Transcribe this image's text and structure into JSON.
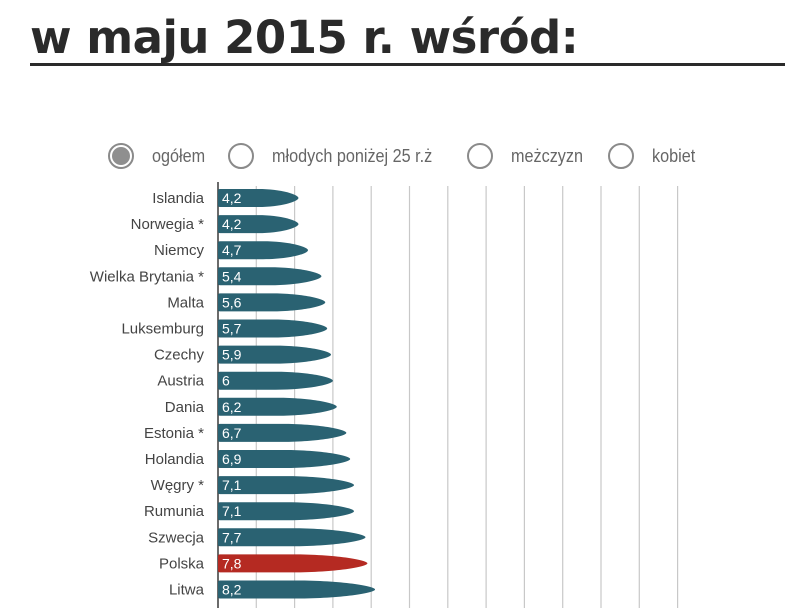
{
  "header": {
    "title": "w maju 2015 r. wśród:"
  },
  "filters": [
    {
      "label": "ogółem",
      "selected": true
    },
    {
      "label": "młodych poniżej 25 r.ż",
      "selected": false
    },
    {
      "label": "meżczyzn",
      "selected": false
    },
    {
      "label": "kobiet",
      "selected": false
    }
  ],
  "colors": {
    "bar": "#2a6272",
    "highlight": "#b52a22",
    "grid": "#c8c8c8",
    "text": "#444444"
  },
  "chart_data": {
    "type": "bar",
    "orientation": "horizontal",
    "categories": [
      "Islandia",
      "Norwegia *",
      "Niemcy",
      "Wielka Brytania *",
      "Malta",
      "Luksemburg",
      "Czechy",
      "Austria",
      "Dania",
      "Estonia *",
      "Holandia",
      "Węgry *",
      "Rumunia",
      "Szwecja",
      "Polska",
      "Litwa"
    ],
    "values": [
      4.2,
      4.2,
      4.7,
      5.4,
      5.6,
      5.7,
      5.9,
      6,
      6.2,
      6.7,
      6.9,
      7.1,
      7.1,
      7.7,
      7.8,
      8.2
    ],
    "value_labels": [
      "4,2",
      "4,2",
      "4,7",
      "5,4",
      "5,6",
      "5,7",
      "5,9",
      "6",
      "6,2",
      "6,7",
      "6,9",
      "7,1",
      "7,1",
      "7,7",
      "7,8",
      "8,2"
    ],
    "highlight": "Polska",
    "xlim": [
      0,
      24
    ],
    "grid": true
  }
}
